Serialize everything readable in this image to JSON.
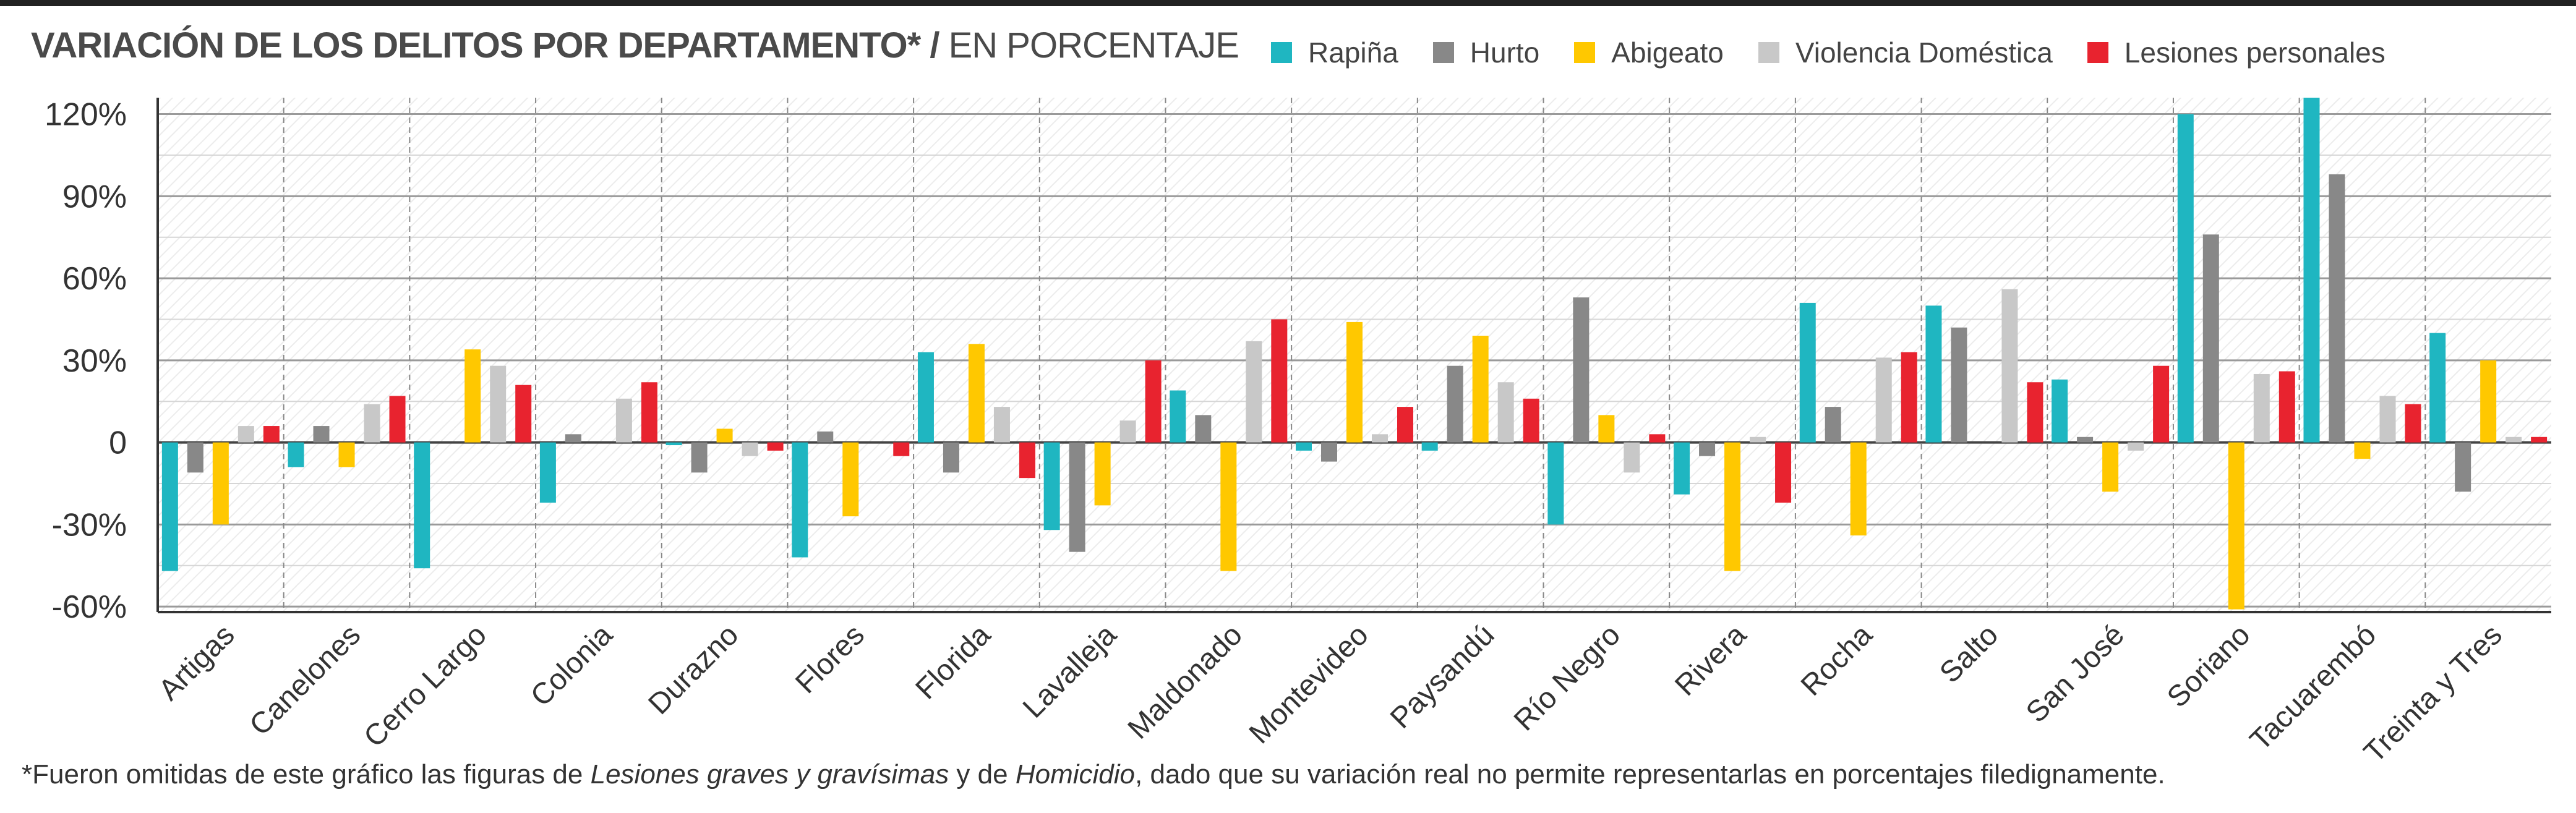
{
  "title": {
    "bold": "VARIACIÓN DE LOS DELITOS POR DEPARTAMENTO*",
    "separator": "/",
    "light": "EN PORCENTAJE"
  },
  "legend": [
    {
      "name": "Rapiña",
      "color": "#1fb6c1"
    },
    {
      "name": "Hurto",
      "color": "#888888"
    },
    {
      "name": "Abigeato",
      "color": "#ffc800"
    },
    {
      "name": "Violencia Doméstica",
      "color": "#c8c8c8"
    },
    {
      "name": "Lesiones personales",
      "color": "#e8232f"
    }
  ],
  "footnote": {
    "part1": "*Fueron omitidas de este gráfico las figuras de ",
    "italic1": "Lesiones graves y gravísimas",
    "part2": " y de ",
    "italic2": "Homicidio",
    "part3": ", dado que su variación real no permite representarlas en porcentajes filedignamente."
  },
  "chart_data": {
    "type": "bar",
    "ylim": [
      -62,
      126
    ],
    "yticks": [
      120,
      90,
      60,
      30,
      0,
      -30,
      -60
    ],
    "ytick_labels": [
      "120%",
      "90%",
      "60%",
      "30%",
      "0",
      "-30%",
      "-60%"
    ],
    "grid": true,
    "legend_position": "top",
    "categories": [
      "Artigas",
      "Canelones",
      "Cerro Largo",
      "Colonia",
      "Durazno",
      "Flores",
      "Florida",
      "Lavalleja",
      "Maldonado",
      "Montevideo",
      "Paysandú",
      "Río Negro",
      "Rivera",
      "Rocha",
      "Salto",
      "San José",
      "Soriano",
      "Tacuarembó",
      "Treinta y Tres"
    ],
    "series": [
      {
        "name": "Rapiña",
        "color": "#1fb6c1",
        "values": [
          -47,
          -9,
          -46,
          -22,
          -1,
          -42,
          33,
          -32,
          19,
          -3,
          -3,
          -30,
          -19,
          51,
          50,
          23,
          120,
          126,
          40
        ]
      },
      {
        "name": "Hurto",
        "color": "#888888",
        "values": [
          -11,
          6,
          0,
          3,
          -11,
          4,
          -11,
          -40,
          10,
          -7,
          28,
          53,
          -5,
          13,
          42,
          2,
          76,
          98,
          -18
        ]
      },
      {
        "name": "Abigeato",
        "color": "#ffc800",
        "values": [
          -30,
          -9,
          34,
          0,
          5,
          -27,
          36,
          -23,
          -47,
          44,
          39,
          10,
          -47,
          -34,
          0,
          -18,
          -61,
          -6,
          30
        ]
      },
      {
        "name": "Violencia Doméstica",
        "color": "#c8c8c8",
        "values": [
          6,
          14,
          28,
          16,
          -5,
          0,
          13,
          8,
          37,
          3,
          22,
          -11,
          2,
          31,
          56,
          -3,
          25,
          17,
          2
        ]
      },
      {
        "name": "Lesiones personales",
        "color": "#e8232f",
        "values": [
          6,
          17,
          21,
          22,
          -3,
          -5,
          -13,
          30,
          45,
          13,
          16,
          3,
          -22,
          33,
          22,
          28,
          26,
          14,
          2
        ]
      }
    ]
  }
}
